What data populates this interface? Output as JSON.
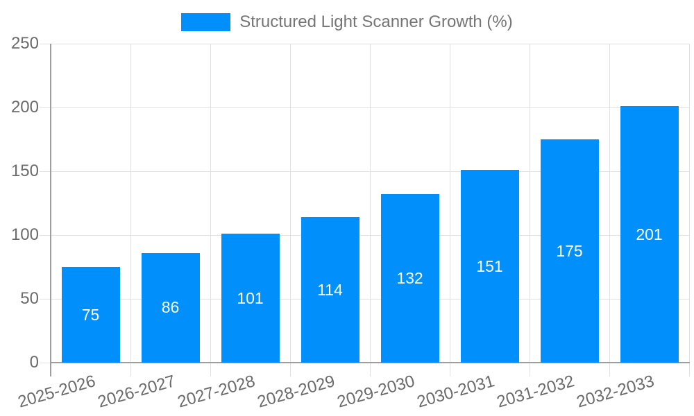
{
  "chart_data": {
    "type": "bar",
    "series_name": "Structured Light Scanner Growth (%)",
    "categories": [
      "2025-2026",
      "2026-2027",
      "2027-2028",
      "2028-2029",
      "2029-2030",
      "2030-2031",
      "2031-2032",
      "2032-2033"
    ],
    "values": [
      75,
      86,
      101,
      114,
      132,
      151,
      175,
      201
    ],
    "ylim": [
      0,
      250
    ],
    "yticks": [
      0,
      50,
      100,
      150,
      200,
      250
    ],
    "ytick_labels": [
      "0",
      "50",
      "100",
      "150",
      "200",
      "250"
    ],
    "grid": "horizontal and vertical, light gray",
    "legend_position": "top-center",
    "data_labels_position": "inside-center",
    "colors": {
      "bar": "#008FFB",
      "grid": "#e0e0e0",
      "axis": "#9e9e9e",
      "tick_label": "#6b6b6b",
      "legend_text": "#757575",
      "value_label": "#ffffff"
    }
  }
}
